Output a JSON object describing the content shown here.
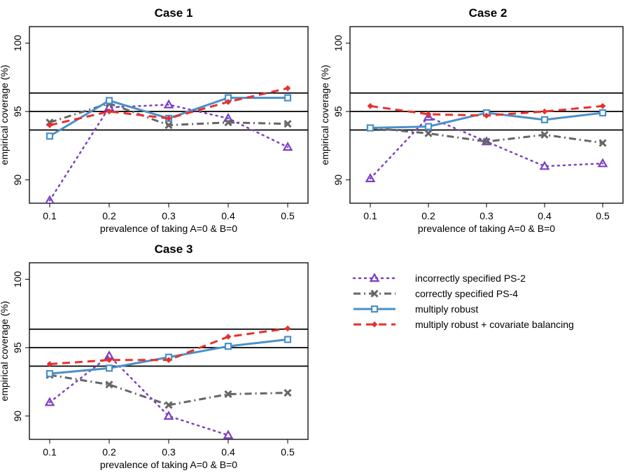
{
  "chart_data": [
    {
      "type": "line",
      "title": "Case 1",
      "xlabel": "prevalence of taking A=0 & B=0",
      "ylabel": "empirical coverage (%)",
      "x": [
        0.1,
        0.2,
        0.3,
        0.4,
        0.5
      ],
      "x_tick_labels": [
        "0.1",
        "0.2",
        "0.3",
        "0.4",
        "0.5"
      ],
      "ylim": [
        88.5,
        101
      ],
      "y_ticks": [
        90,
        95,
        100
      ],
      "y_tick_labels": [
        "90",
        "95",
        "100"
      ],
      "reference_lines": [
        93.65,
        95,
        96.35
      ],
      "series": [
        {
          "name": "incorrectly specified PS-2",
          "values": [
            88.5,
            95.3,
            95.5,
            94.5,
            92.4
          ]
        },
        {
          "name": "correctly specified PS-4",
          "values": [
            94.2,
            95.6,
            94.0,
            94.2,
            94.1
          ]
        },
        {
          "name": "multiply robust",
          "values": [
            93.2,
            95.8,
            94.5,
            96.0,
            96.0
          ]
        },
        {
          "name": "multiply robust + covariate balancing",
          "values": [
            94.0,
            95.0,
            94.5,
            95.7,
            96.7
          ]
        }
      ]
    },
    {
      "type": "line",
      "title": "Case 2",
      "xlabel": "prevalence of taking A=0 & B=0",
      "ylabel": "empirical coverage (%)",
      "x": [
        0.1,
        0.2,
        0.3,
        0.4,
        0.5
      ],
      "x_tick_labels": [
        "0.1",
        "0.2",
        "0.3",
        "0.4",
        "0.5"
      ],
      "ylim": [
        88.5,
        101
      ],
      "y_ticks": [
        90,
        95,
        100
      ],
      "y_tick_labels": [
        "90",
        "95",
        "100"
      ],
      "reference_lines": [
        93.65,
        95,
        96.35
      ],
      "series": [
        {
          "name": "incorrectly specified PS-2",
          "values": [
            90.1,
            94.6,
            92.8,
            91.0,
            91.2
          ]
        },
        {
          "name": "correctly specified PS-4",
          "values": [
            93.8,
            93.4,
            92.8,
            93.3,
            92.7
          ]
        },
        {
          "name": "multiply robust",
          "values": [
            93.8,
            93.9,
            94.9,
            94.4,
            94.9
          ]
        },
        {
          "name": "multiply robust + covariate balancing",
          "values": [
            95.4,
            94.8,
            94.7,
            95.0,
            95.4
          ]
        }
      ]
    },
    {
      "type": "line",
      "title": "Case 3",
      "xlabel": "prevalence of taking A=0 & B=0",
      "ylabel": "empirical coverage (%)",
      "x": [
        0.1,
        0.2,
        0.3,
        0.4,
        0.5
      ],
      "x_tick_labels": [
        "0.1",
        "0.2",
        "0.3",
        "0.4",
        "0.5"
      ],
      "ylim": [
        88.5,
        101
      ],
      "y_ticks": [
        90,
        95,
        100
      ],
      "y_tick_labels": [
        "90",
        "95",
        "100"
      ],
      "reference_lines": [
        93.65,
        95,
        96.35
      ],
      "series": [
        {
          "name": "incorrectly specified PS-2",
          "values": [
            91.0,
            94.4,
            90.0,
            88.6,
            null
          ]
        },
        {
          "name": "correctly specified PS-4",
          "values": [
            93.0,
            92.3,
            90.8,
            91.6,
            91.7
          ]
        },
        {
          "name": "multiply robust",
          "values": [
            93.1,
            93.5,
            94.3,
            95.1,
            95.6
          ]
        },
        {
          "name": "multiply robust + covariate balancing",
          "values": [
            93.8,
            94.1,
            94.1,
            95.8,
            96.4
          ]
        }
      ]
    }
  ],
  "legend": {
    "placement": "bottom-right",
    "entries": [
      {
        "label": "incorrectly specified PS-2",
        "color": "#7b3fc4",
        "marker": "triangle-icon",
        "line": "dotted"
      },
      {
        "label": "correctly specified PS-4",
        "color": "#666666",
        "marker": "cross-icon",
        "line": "dashdot"
      },
      {
        "label": "multiply robust",
        "color": "#4a90c8",
        "marker": "square-icon",
        "line": "solid"
      },
      {
        "label": "multiply robust + covariate balancing",
        "color": "#e8302c",
        "marker": "diamond-icon",
        "line": "dashed"
      }
    ]
  }
}
